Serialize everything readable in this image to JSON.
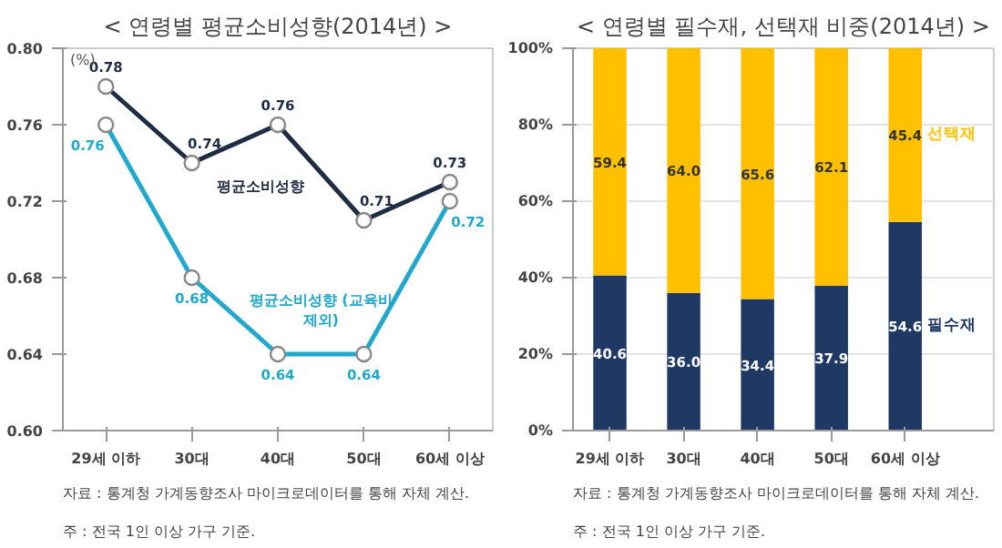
{
  "chart_data": [
    {
      "type": "line",
      "title": "< 연령별 평균소비성향(2014년) >",
      "ylabel": "(%)",
      "categories": [
        "29세 이하",
        "30대",
        "40대",
        "50대",
        "60세 이상"
      ],
      "series": [
        {
          "name": "평균소비성향",
          "color": "#1f2d44",
          "values": [
            0.78,
            0.74,
            0.76,
            0.71,
            0.73
          ]
        },
        {
          "name": "평균소비성향 (교육비 제외)",
          "color": "#22a8cc",
          "values": [
            0.76,
            0.68,
            0.64,
            0.64,
            0.72
          ]
        }
      ],
      "ylim": [
        0.6,
        0.8
      ],
      "yticks": [
        {
          "value": 0.6,
          "label": "0.60"
        },
        {
          "value": 0.64,
          "label": "0.64"
        },
        {
          "value": 0.68,
          "label": "0.68"
        },
        {
          "value": 0.72,
          "label": "0.72"
        },
        {
          "value": 0.76,
          "label": "0.76"
        },
        {
          "value": 0.8,
          "label": "0.80"
        }
      ],
      "marker": "circle",
      "data_labels": true,
      "grid": false,
      "annotations": [
        "자료 : 통계청 가계동향조사 마이크로데이터를 통해 자체 계산.",
        "주 : 전국 1인 이상 가구 기준."
      ]
    },
    {
      "type": "bar",
      "stacked": true,
      "title": "< 연령별 필수재, 선택재 비중(2014년) >",
      "categories": [
        "29세 이하",
        "30대",
        "40대",
        "50대",
        "60세 이상"
      ],
      "series": [
        {
          "name": "필수재",
          "color": "#1f3864",
          "values": [
            40.6,
            36.0,
            34.4,
            37.9,
            54.6
          ],
          "value_labels": [
            "40.6",
            "36.0",
            "34.4",
            "37.9",
            "54.6"
          ]
        },
        {
          "name": "선택재",
          "color": "#ffc000",
          "values": [
            59.4,
            64.0,
            65.6,
            62.1,
            45.4
          ],
          "value_labels": [
            "59.4",
            "64.0",
            "65.6",
            "62.1",
            "45.4"
          ]
        }
      ],
      "ylim": [
        0,
        100
      ],
      "yticks": [
        {
          "value": 0,
          "label": "0%"
        },
        {
          "value": 20,
          "label": "20%"
        },
        {
          "value": 40,
          "label": "40%"
        },
        {
          "value": 60,
          "label": "60%"
        },
        {
          "value": 80,
          "label": "80%"
        },
        {
          "value": 100,
          "label": "100%"
        }
      ],
      "grid": "y",
      "annotations": [
        "자료 : 통계청 가계동향조사 마이크로데이터를 통해 자체 계산.",
        "주 : 전국 1인 이상 가구 기준."
      ]
    }
  ]
}
